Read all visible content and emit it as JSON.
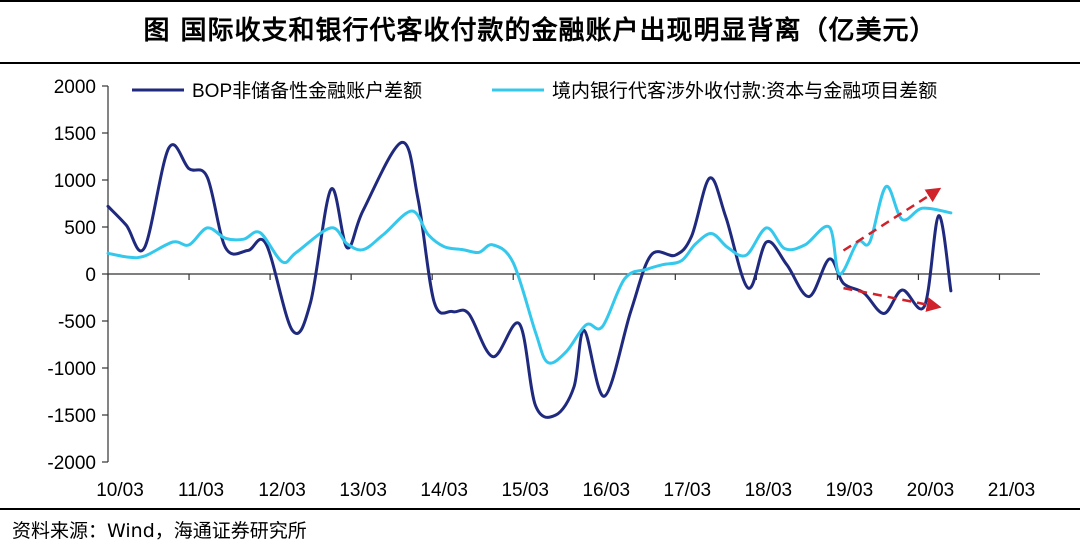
{
  "header": {
    "title": "图 国际收支和银行代客收付款的金融账户出现明显背离（亿美元）"
  },
  "footer": {
    "source": "资料来源：Wind，海通证券研究所"
  },
  "chart_data": {
    "type": "line",
    "title": "图 国际收支和银行代客收付款的金融账户出现明显背离（亿美元）",
    "xlabel": "",
    "ylabel": "",
    "ylim": [
      -2000,
      2000
    ],
    "xlim": [
      0,
      46
    ],
    "yticks": [
      2000,
      1500,
      1000,
      500,
      0,
      -500,
      -1000,
      -1500,
      -2000
    ],
    "xticks": [
      {
        "label": "10/03",
        "x": 0
      },
      {
        "label": "11/03",
        "x": 4
      },
      {
        "label": "12/03",
        "x": 8
      },
      {
        "label": "13/03",
        "x": 12
      },
      {
        "label": "14/03",
        "x": 16
      },
      {
        "label": "15/03",
        "x": 20
      },
      {
        "label": "16/03",
        "x": 24
      },
      {
        "label": "17/03",
        "x": 28
      },
      {
        "label": "18/03",
        "x": 32
      },
      {
        "label": "19/03",
        "x": 36
      },
      {
        "label": "20/03",
        "x": 40
      },
      {
        "label": "21/03",
        "x": 44
      }
    ],
    "legend_position": "top",
    "grid": false,
    "series": [
      {
        "name": "BOP非储备性金融账户差额",
        "color": "#1f2a7e",
        "points": [
          [
            0,
            720
          ],
          [
            0.9,
            520
          ],
          [
            1.8,
            280
          ],
          [
            3.0,
            1340
          ],
          [
            4.0,
            1120
          ],
          [
            4.9,
            1030
          ],
          [
            5.8,
            280
          ],
          [
            6.9,
            250
          ],
          [
            7.8,
            320
          ],
          [
            9.1,
            -600
          ],
          [
            10.0,
            -300
          ],
          [
            11.0,
            900
          ],
          [
            11.8,
            280
          ],
          [
            12.6,
            680
          ],
          [
            14.5,
            1400
          ],
          [
            15.3,
            800
          ],
          [
            16.1,
            -300
          ],
          [
            17.0,
            -400
          ],
          [
            17.8,
            -420
          ],
          [
            19.0,
            -880
          ],
          [
            20.3,
            -530
          ],
          [
            21.1,
            -1400
          ],
          [
            22.1,
            -1500
          ],
          [
            23.0,
            -1200
          ],
          [
            23.5,
            -600
          ],
          [
            24.5,
            -1300
          ],
          [
            25.8,
            -400
          ],
          [
            26.8,
            200
          ],
          [
            28.0,
            200
          ],
          [
            28.8,
            400
          ],
          [
            29.7,
            1020
          ],
          [
            30.5,
            600
          ],
          [
            31.6,
            -150
          ],
          [
            32.5,
            340
          ],
          [
            33.5,
            100
          ],
          [
            34.6,
            -240
          ],
          [
            35.6,
            160
          ],
          [
            36.3,
            -100
          ],
          [
            37.3,
            -200
          ],
          [
            38.3,
            -420
          ],
          [
            39.2,
            -170
          ],
          [
            40.3,
            -340
          ],
          [
            41.0,
            620
          ],
          [
            41.6,
            -180
          ]
        ]
      },
      {
        "name": "境内银行代客涉外收付款:资本与金融项目差额",
        "color": "#34c8ed",
        "points": [
          [
            0,
            220
          ],
          [
            1.0,
            180
          ],
          [
            1.8,
            190
          ],
          [
            3.2,
            340
          ],
          [
            4.0,
            310
          ],
          [
            4.9,
            490
          ],
          [
            5.8,
            380
          ],
          [
            6.7,
            370
          ],
          [
            7.5,
            440
          ],
          [
            8.6,
            130
          ],
          [
            9.3,
            230
          ],
          [
            11.0,
            490
          ],
          [
            11.8,
            320
          ],
          [
            12.6,
            260
          ],
          [
            13.6,
            420
          ],
          [
            15.0,
            670
          ],
          [
            15.8,
            420
          ],
          [
            16.6,
            290
          ],
          [
            17.5,
            260
          ],
          [
            18.3,
            230
          ],
          [
            19.0,
            310
          ],
          [
            20.0,
            120
          ],
          [
            21.1,
            -620
          ],
          [
            21.7,
            -940
          ],
          [
            22.6,
            -830
          ],
          [
            23.6,
            -540
          ],
          [
            24.4,
            -560
          ],
          [
            25.5,
            -50
          ],
          [
            26.6,
            50
          ],
          [
            27.4,
            100
          ],
          [
            28.3,
            140
          ],
          [
            29.0,
            320
          ],
          [
            29.8,
            430
          ],
          [
            30.6,
            280
          ],
          [
            31.5,
            200
          ],
          [
            32.5,
            490
          ],
          [
            33.4,
            270
          ],
          [
            34.4,
            310
          ],
          [
            35.6,
            500
          ],
          [
            36.1,
            0
          ],
          [
            37.0,
            340
          ],
          [
            37.6,
            340
          ],
          [
            38.4,
            930
          ],
          [
            39.2,
            580
          ],
          [
            40.2,
            700
          ],
          [
            41.6,
            650
          ]
        ]
      }
    ],
    "annotations": [
      {
        "type": "dashed-arrow",
        "color": "#d0222a",
        "from": [
          36.3,
          250
        ],
        "to": [
          41.0,
          900
        ]
      },
      {
        "type": "dashed-arrow",
        "color": "#d0222a",
        "from": [
          36.3,
          -150
        ],
        "to": [
          41.0,
          -350
        ]
      }
    ]
  }
}
